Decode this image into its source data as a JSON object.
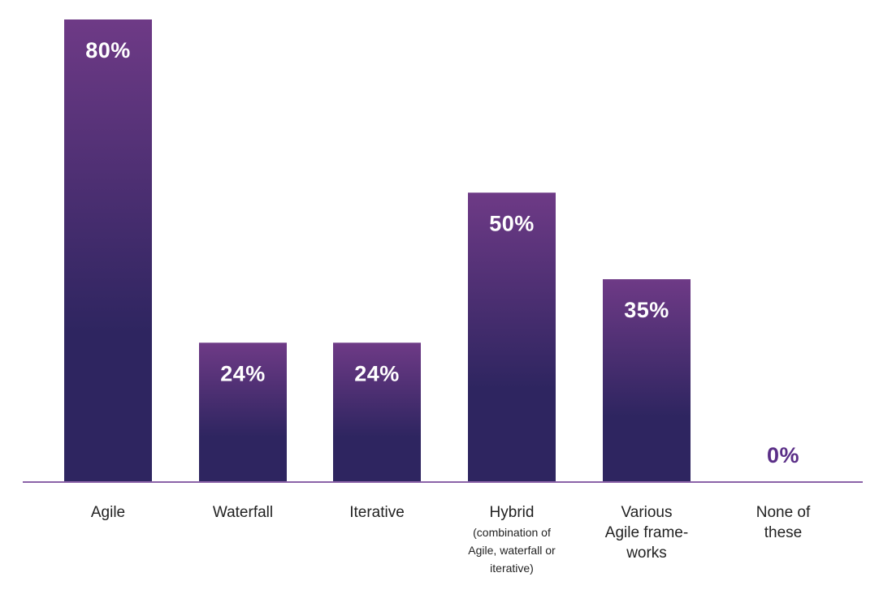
{
  "chart_data": {
    "type": "bar",
    "title": "",
    "xlabel": "",
    "ylabel": "",
    "ylim": [
      0,
      80
    ],
    "grid": false,
    "categories": [
      {
        "lines": [
          "Agile"
        ],
        "sub_lines": []
      },
      {
        "lines": [
          "Waterfall"
        ],
        "sub_lines": []
      },
      {
        "lines": [
          "Iterative"
        ],
        "sub_lines": []
      },
      {
        "lines": [
          "Hybrid"
        ],
        "sub_lines": [
          "(combination of",
          "Agile, waterfall or",
          "iterative)"
        ]
      },
      {
        "lines": [
          "Various",
          "Agile frame-",
          "works"
        ],
        "sub_lines": []
      },
      {
        "lines": [
          "None of",
          "these"
        ],
        "sub_lines": []
      }
    ],
    "values": [
      80,
      24,
      24,
      50,
      35,
      0
    ],
    "value_labels": [
      "80%",
      "24%",
      "24%",
      "50%",
      "35%",
      "0%"
    ]
  },
  "colors": {
    "bar_top": "#6e3a86",
    "bar_bottom": "#2e2560",
    "axis": "#8b63a8",
    "label_inside": "#ffffff",
    "label_outside": "#5a2e87",
    "text": "#222222"
  }
}
